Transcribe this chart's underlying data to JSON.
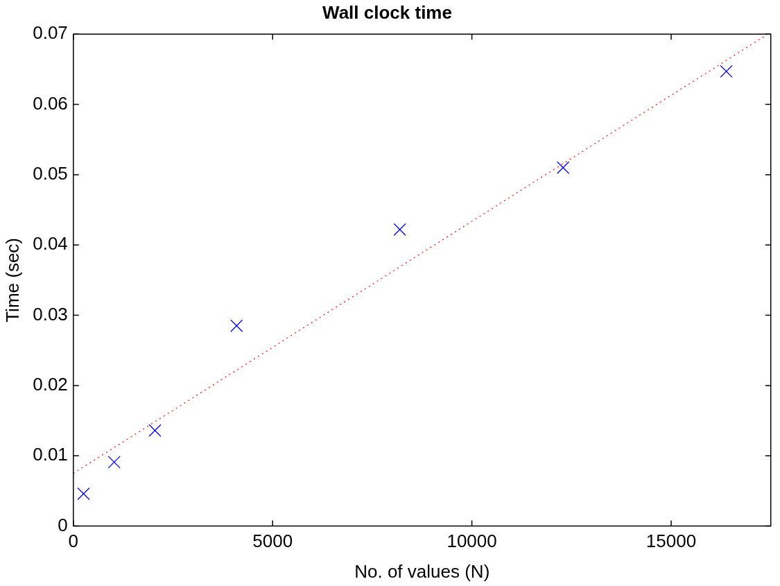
{
  "chart_data": {
    "type": "scatter",
    "title": "Wall clock time",
    "xlabel": "No. of values (N)",
    "ylabel": "Time (sec)",
    "x": [
      256,
      1024,
      2048,
      4096,
      8192,
      12288,
      16384
    ],
    "series": [
      {
        "color": "#0000ff",
        "marker": "cross",
        "values": [
          0.0046,
          0.0091,
          0.0136,
          0.0285,
          0.0422,
          0.051,
          0.0647
        ]
      },
      {
        "type": "line",
        "color": "#ff0000",
        "line_style": "dotted",
        "marker": "none",
        "x": [
          0,
          17400
        ],
        "values": [
          0.0075,
          0.0699
        ]
      }
    ],
    "xlim": [
      0,
      17500
    ],
    "xticks": [
      0,
      5000,
      10000,
      15000
    ],
    "ylim": [
      0,
      0.07
    ],
    "yticks": [
      0,
      0.01,
      0.02,
      0.03,
      0.04,
      0.05,
      0.06,
      0.07
    ],
    "grid": false,
    "legend": false
  }
}
